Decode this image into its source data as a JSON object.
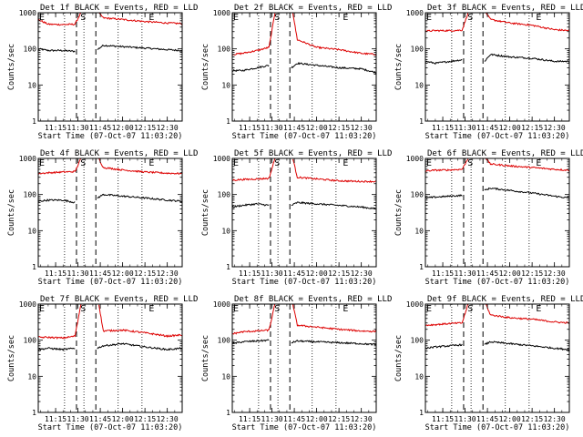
{
  "figure": {
    "colors": {
      "events": "#000000",
      "lld": "#dd0000",
      "axis": "#000000",
      "background": "#ffffff"
    }
  },
  "chart_data": [
    {
      "type": "line",
      "title": "Det 1f BLACK = Events, RED = LLD",
      "ylabel": "Counts/sec",
      "xlabel": "Start Time (07-Oct-07 11:03:20)",
      "yscale": "log",
      "ylim": [
        1,
        1000
      ],
      "ytick_labels": [
        "1",
        "10",
        "100",
        "1000"
      ],
      "xlim": [
        "11:03:20",
        "12:40:00"
      ],
      "xtick_labels": [
        "11:15",
        "11:30",
        "11:45",
        "12:00",
        "12:15",
        "12:30"
      ],
      "markers": [
        {
          "label": "E",
          "time": "11:03:20"
        },
        {
          "label": "S",
          "time": "11:31:00"
        },
        {
          "label": "E",
          "time": "12:17:00"
        }
      ],
      "dashed_lines": [
        "11:29:00",
        "11:42:00"
      ],
      "dotted_lines": [
        "11:21:00",
        "11:34:00",
        "11:57:00",
        "12:13:00"
      ],
      "series": [
        {
          "name": "Events",
          "color": "#000000",
          "x": [
            "11:03:20",
            "11:10:00",
            "11:20:00",
            "11:28:00",
            "11:36:00",
            "11:43:00",
            "11:47:00",
            "12:00:00",
            "12:15:00",
            "12:30:00",
            "12:40:00"
          ],
          "y": [
            100,
            90,
            90,
            85,
            null,
            95,
            125,
            115,
            105,
            95,
            90
          ]
        },
        {
          "name": "LLD",
          "color": "#dd0000",
          "x": [
            "11:03:20",
            "11:10:00",
            "11:20:00",
            "11:28:00",
            "11:32:00",
            "11:36:00",
            "11:44:00",
            "11:47:00",
            "12:00:00",
            "12:15:00",
            "12:30:00",
            "12:40:00"
          ],
          "y": [
            650,
            480,
            470,
            480,
            1000,
            null,
            1000,
            720,
            650,
            570,
            520,
            500
          ]
        }
      ]
    },
    {
      "type": "line",
      "title": "Det 2f BLACK = Events, RED = LLD",
      "ylabel": "Counts/sec",
      "xlabel": "Start Time (07-Oct-07 11:03:20)",
      "yscale": "log",
      "ylim": [
        1,
        1000
      ],
      "ytick_labels": [
        "1",
        "10",
        "100",
        "1000"
      ],
      "xlim": [
        "11:03:20",
        "12:40:00"
      ],
      "xtick_labels": [
        "11:15",
        "11:30",
        "11:45",
        "12:00",
        "12:15",
        "12:30"
      ],
      "markers": [
        {
          "label": "E",
          "time": "11:03:20"
        },
        {
          "label": "S",
          "time": "11:31:00"
        },
        {
          "label": "E",
          "time": "12:17:00"
        }
      ],
      "dashed_lines": [
        "11:29:00",
        "11:42:00"
      ],
      "dotted_lines": [
        "11:21:00",
        "11:34:00",
        "11:57:00",
        "12:13:00"
      ],
      "series": [
        {
          "name": "Events",
          "color": "#000000",
          "x": [
            "11:03:20",
            "11:10:00",
            "11:20:00",
            "11:28:00",
            "11:36:00",
            "11:43:00",
            "11:47:00",
            "12:00:00",
            "12:15:00",
            "12:30:00",
            "12:40:00"
          ],
          "y": [
            25,
            25,
            30,
            35,
            null,
            30,
            40,
            35,
            30,
            28,
            22
          ]
        },
        {
          "name": "LLD",
          "color": "#dd0000",
          "x": [
            "11:03:20",
            "11:10:00",
            "11:20:00",
            "11:28:00",
            "11:32:00",
            "11:36:00",
            "11:44:00",
            "11:47:00",
            "12:00:00",
            "12:15:00",
            "12:30:00",
            "12:40:00"
          ],
          "y": [
            70,
            75,
            90,
            110,
            1000,
            null,
            1000,
            180,
            110,
            95,
            75,
            70
          ]
        }
      ]
    },
    {
      "type": "line",
      "title": "Det 3f BLACK = Events, RED = LLD",
      "ylabel": "Counts/sec",
      "xlabel": "Start Time (07-Oct-07 11:03:20)",
      "yscale": "log",
      "ylim": [
        1,
        1000
      ],
      "ytick_labels": [
        "1",
        "10",
        "100",
        "1000"
      ],
      "xlim": [
        "11:03:20",
        "12:40:00"
      ],
      "xtick_labels": [
        "11:15",
        "11:30",
        "11:45",
        "12:00",
        "12:15",
        "12:30"
      ],
      "markers": [
        {
          "label": "E",
          "time": "11:03:20"
        },
        {
          "label": "S",
          "time": "11:31:00"
        },
        {
          "label": "E",
          "time": "12:17:00"
        }
      ],
      "dashed_lines": [
        "11:29:00",
        "11:42:00"
      ],
      "dotted_lines": [
        "11:21:00",
        "11:34:00",
        "11:57:00",
        "12:13:00"
      ],
      "series": [
        {
          "name": "Events",
          "color": "#000000",
          "x": [
            "11:03:20",
            "11:10:00",
            "11:20:00",
            "11:28:00",
            "11:36:00",
            "11:43:00",
            "11:47:00",
            "12:00:00",
            "12:15:00",
            "12:30:00",
            "12:40:00"
          ],
          "y": [
            45,
            40,
            45,
            50,
            null,
            45,
            70,
            60,
            55,
            45,
            45
          ]
        },
        {
          "name": "LLD",
          "color": "#dd0000",
          "x": [
            "11:03:20",
            "11:10:00",
            "11:20:00",
            "11:28:00",
            "11:32:00",
            "11:36:00",
            "11:44:00",
            "11:47:00",
            "12:00:00",
            "12:15:00",
            "12:30:00",
            "12:40:00"
          ],
          "y": [
            310,
            320,
            320,
            330,
            1000,
            null,
            1000,
            650,
            520,
            450,
            340,
            320
          ]
        }
      ]
    },
    {
      "type": "line",
      "title": "Det 4f BLACK = Events, RED = LLD",
      "ylabel": "Counts/sec",
      "xlabel": "Start Time (07-Oct-07 11:03:20)",
      "yscale": "log",
      "ylim": [
        1,
        1000
      ],
      "ytick_labels": [
        "1",
        "10",
        "100",
        "1000"
      ],
      "xlim": [
        "11:03:20",
        "12:40:00"
      ],
      "xtick_labels": [
        "11:15",
        "11:30",
        "11:45",
        "12:00",
        "12:15",
        "12:30"
      ],
      "markers": [
        {
          "label": "E",
          "time": "11:03:20"
        },
        {
          "label": "S",
          "time": "11:31:00"
        },
        {
          "label": "E",
          "time": "12:17:00"
        }
      ],
      "dashed_lines": [
        "11:29:00",
        "11:42:00"
      ],
      "dotted_lines": [
        "11:21:00",
        "11:34:00",
        "11:57:00",
        "12:13:00"
      ],
      "series": [
        {
          "name": "Events",
          "color": "#000000",
          "x": [
            "11:03:20",
            "11:10:00",
            "11:20:00",
            "11:28:00",
            "11:36:00",
            "11:43:00",
            "11:47:00",
            "12:00:00",
            "12:15:00",
            "12:30:00",
            "12:40:00"
          ],
          "y": [
            65,
            70,
            70,
            60,
            null,
            80,
            100,
            90,
            80,
            70,
            65
          ]
        },
        {
          "name": "LLD",
          "color": "#dd0000",
          "x": [
            "11:03:20",
            "11:10:00",
            "11:20:00",
            "11:28:00",
            "11:32:00",
            "11:36:00",
            "11:44:00",
            "11:47:00",
            "12:00:00",
            "12:15:00",
            "12:30:00",
            "12:40:00"
          ],
          "y": [
            380,
            400,
            420,
            430,
            1000,
            null,
            1000,
            560,
            480,
            420,
            390,
            380
          ]
        }
      ]
    },
    {
      "type": "line",
      "title": "Det 5f BLACK = Events, RED = LLD",
      "ylabel": "Counts/sec",
      "xlabel": "Start Time (07-Oct-07 11:03:20)",
      "yscale": "log",
      "ylim": [
        1,
        1000
      ],
      "ytick_labels": [
        "1",
        "10",
        "100",
        "1000"
      ],
      "xlim": [
        "11:03:20",
        "12:40:00"
      ],
      "xtick_labels": [
        "11:15",
        "11:30",
        "11:45",
        "12:00",
        "12:15",
        "12:30"
      ],
      "markers": [
        {
          "label": "E",
          "time": "11:03:20"
        },
        {
          "label": "S",
          "time": "11:31:00"
        },
        {
          "label": "E",
          "time": "12:17:00"
        }
      ],
      "dashed_lines": [
        "11:29:00",
        "11:42:00"
      ],
      "dotted_lines": [
        "11:21:00",
        "11:34:00",
        "11:57:00",
        "12:13:00"
      ],
      "series": [
        {
          "name": "Events",
          "color": "#000000",
          "x": [
            "11:03:20",
            "11:10:00",
            "11:20:00",
            "11:28:00",
            "11:36:00",
            "11:43:00",
            "11:47:00",
            "12:00:00",
            "12:15:00",
            "12:30:00",
            "12:40:00"
          ],
          "y": [
            45,
            50,
            55,
            50,
            null,
            50,
            60,
            55,
            50,
            45,
            40
          ]
        },
        {
          "name": "LLD",
          "color": "#dd0000",
          "x": [
            "11:03:20",
            "11:10:00",
            "11:20:00",
            "11:28:00",
            "11:32:00",
            "11:36:00",
            "11:44:00",
            "11:47:00",
            "12:00:00",
            "12:15:00",
            "12:30:00",
            "12:40:00"
          ],
          "y": [
            250,
            260,
            270,
            280,
            1000,
            null,
            1000,
            300,
            270,
            240,
            230,
            230
          ]
        }
      ]
    },
    {
      "type": "line",
      "title": "Det 6f BLACK = Events, RED = LLD",
      "ylabel": "Counts/sec",
      "xlabel": "Start Time (07-Oct-07 11:03:20)",
      "yscale": "log",
      "ylim": [
        1,
        1000
      ],
      "ytick_labels": [
        "1",
        "10",
        "100",
        "1000"
      ],
      "xlim": [
        "11:03:20",
        "12:40:00"
      ],
      "xtick_labels": [
        "11:15",
        "11:30",
        "11:45",
        "12:00",
        "12:15",
        "12:30"
      ],
      "markers": [
        {
          "label": "E",
          "time": "11:03:20"
        },
        {
          "label": "S",
          "time": "11:31:00"
        },
        {
          "label": "E",
          "time": "12:17:00"
        }
      ],
      "dashed_lines": [
        "11:29:00",
        "11:42:00"
      ],
      "dotted_lines": [
        "11:21:00",
        "11:34:00",
        "11:57:00",
        "12:13:00"
      ],
      "series": [
        {
          "name": "Events",
          "color": "#000000",
          "x": [
            "11:03:20",
            "11:10:00",
            "11:20:00",
            "11:28:00",
            "11:36:00",
            "11:43:00",
            "11:47:00",
            "12:00:00",
            "12:15:00",
            "12:30:00",
            "12:40:00"
          ],
          "y": [
            80,
            85,
            90,
            95,
            null,
            130,
            150,
            130,
            110,
            90,
            80
          ]
        },
        {
          "name": "LLD",
          "color": "#dd0000",
          "x": [
            "11:03:20",
            "11:10:00",
            "11:20:00",
            "11:28:00",
            "11:32:00",
            "11:36:00",
            "11:44:00",
            "11:47:00",
            "12:00:00",
            "12:15:00",
            "12:30:00",
            "12:40:00"
          ],
          "y": [
            450,
            470,
            480,
            500,
            1000,
            null,
            1000,
            700,
            620,
            560,
            500,
            470
          ]
        }
      ]
    },
    {
      "type": "line",
      "title": "Det 7f BLACK = Events, RED = LLD",
      "ylabel": "Counts/sec",
      "xlabel": "Start Time (07-Oct-07 11:03:20)",
      "yscale": "log",
      "ylim": [
        1,
        1000
      ],
      "ytick_labels": [
        "1",
        "10",
        "100",
        "1000"
      ],
      "xlim": [
        "11:03:20",
        "12:40:00"
      ],
      "xtick_labels": [
        "11:15",
        "11:30",
        "11:45",
        "12:00",
        "12:15",
        "12:30"
      ],
      "markers": [
        {
          "label": "E",
          "time": "11:03:20"
        },
        {
          "label": "S",
          "time": "11:31:00"
        },
        {
          "label": "E",
          "time": "12:17:00"
        }
      ],
      "dashed_lines": [
        "11:29:00",
        "11:42:00"
      ],
      "dotted_lines": [
        "11:21:00",
        "11:34:00",
        "11:57:00",
        "12:13:00"
      ],
      "series": [
        {
          "name": "Events",
          "color": "#000000",
          "x": [
            "11:03:20",
            "11:10:00",
            "11:20:00",
            "11:28:00",
            "11:36:00",
            "11:43:00",
            "11:47:00",
            "12:00:00",
            "12:15:00",
            "12:30:00",
            "12:40:00"
          ],
          "y": [
            55,
            60,
            55,
            60,
            null,
            60,
            70,
            80,
            65,
            55,
            60
          ]
        },
        {
          "name": "LLD",
          "color": "#dd0000",
          "x": [
            "11:03:20",
            "11:10:00",
            "11:20:00",
            "11:28:00",
            "11:32:00",
            "11:36:00",
            "11:44:00",
            "11:47:00",
            "12:00:00",
            "12:15:00",
            "12:30:00",
            "12:40:00"
          ],
          "y": [
            120,
            120,
            115,
            130,
            1000,
            null,
            1000,
            180,
            190,
            160,
            130,
            140
          ]
        }
      ]
    },
    {
      "type": "line",
      "title": "Det 8f BLACK = Events, RED = LLD",
      "ylabel": "Counts/sec",
      "xlabel": "Start Time (07-Oct-07 11:03:20)",
      "yscale": "log",
      "ylim": [
        1,
        1000
      ],
      "ytick_labels": [
        "1",
        "10",
        "100",
        "1000"
      ],
      "xlim": [
        "11:03:20",
        "12:40:00"
      ],
      "xtick_labels": [
        "11:15",
        "11:30",
        "11:45",
        "12:00",
        "12:15",
        "12:30"
      ],
      "markers": [
        {
          "label": "E",
          "time": "11:03:20"
        },
        {
          "label": "S",
          "time": "11:31:00"
        },
        {
          "label": "E",
          "time": "12:17:00"
        }
      ],
      "dashed_lines": [
        "11:29:00",
        "11:42:00"
      ],
      "dotted_lines": [
        "11:21:00",
        "11:34:00",
        "11:57:00",
        "12:13:00"
      ],
      "series": [
        {
          "name": "Events",
          "color": "#000000",
          "x": [
            "11:03:20",
            "11:10:00",
            "11:20:00",
            "11:28:00",
            "11:36:00",
            "11:43:00",
            "11:47:00",
            "12:00:00",
            "12:15:00",
            "12:30:00",
            "12:40:00"
          ],
          "y": [
            80,
            90,
            95,
            100,
            null,
            85,
            95,
            90,
            85,
            80,
            75
          ]
        },
        {
          "name": "LLD",
          "color": "#dd0000",
          "x": [
            "11:03:20",
            "11:10:00",
            "11:20:00",
            "11:28:00",
            "11:32:00",
            "11:36:00",
            "11:44:00",
            "11:47:00",
            "12:00:00",
            "12:15:00",
            "12:30:00",
            "12:40:00"
          ],
          "y": [
            150,
            170,
            180,
            190,
            1000,
            null,
            1000,
            260,
            230,
            200,
            180,
            175
          ]
        }
      ]
    },
    {
      "type": "line",
      "title": "Det 9f BLACK = Events, RED = LLD",
      "ylabel": "Counts/sec",
      "xlabel": "Start Time (07-Oct-07 11:03:20)",
      "yscale": "log",
      "ylim": [
        1,
        1000
      ],
      "ytick_labels": [
        "1",
        "10",
        "100",
        "1000"
      ],
      "xlim": [
        "11:03:20",
        "12:40:00"
      ],
      "xtick_labels": [
        "11:15",
        "11:30",
        "11:45",
        "12:00",
        "12:15",
        "12:30"
      ],
      "markers": [
        {
          "label": "E",
          "time": "11:03:20"
        },
        {
          "label": "S",
          "time": "11:31:00"
        },
        {
          "label": "E",
          "time": "12:17:00"
        }
      ],
      "dashed_lines": [
        "11:29:00",
        "11:42:00"
      ],
      "dotted_lines": [
        "11:21:00",
        "11:34:00",
        "11:57:00",
        "12:13:00"
      ],
      "series": [
        {
          "name": "Events",
          "color": "#000000",
          "x": [
            "11:03:20",
            "11:10:00",
            "11:20:00",
            "11:28:00",
            "11:36:00",
            "11:43:00",
            "11:47:00",
            "12:00:00",
            "12:15:00",
            "12:30:00",
            "12:40:00"
          ],
          "y": [
            60,
            65,
            70,
            75,
            null,
            75,
            90,
            80,
            70,
            60,
            55
          ]
        },
        {
          "name": "LLD",
          "color": "#dd0000",
          "x": [
            "11:03:20",
            "11:10:00",
            "11:20:00",
            "11:28:00",
            "11:32:00",
            "11:36:00",
            "11:44:00",
            "11:47:00",
            "12:00:00",
            "12:15:00",
            "12:30:00",
            "12:40:00"
          ],
          "y": [
            260,
            270,
            290,
            300,
            1000,
            null,
            1000,
            500,
            420,
            380,
            320,
            300
          ]
        }
      ]
    }
  ]
}
